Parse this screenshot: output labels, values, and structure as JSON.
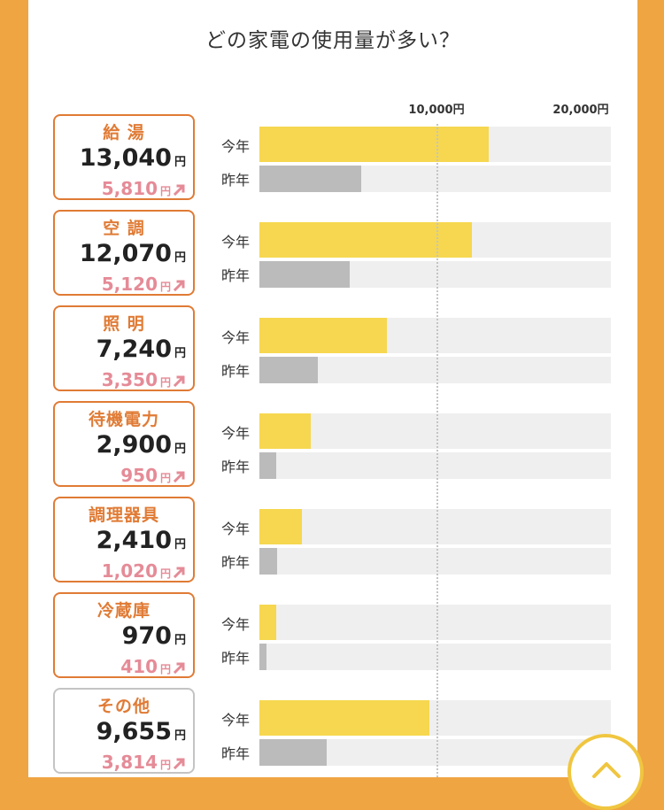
{
  "title": "どの家電の使用量が多い？",
  "scale": {
    "mid_label": "10,000円",
    "max_label": "20,000円",
    "mid_value": 10000,
    "max_value": 20000
  },
  "labels": {
    "current": "今年",
    "previous": "昨年",
    "unit": "円"
  },
  "colors": {
    "accent": "#e07b35",
    "current_bar": "#f6d74f",
    "previous_bar": "#bbbbbb",
    "increase": "#e58b97",
    "frame": "#efa542"
  },
  "chart_data": {
    "type": "bar",
    "title": "どの家電の使用量が多い？",
    "categories": [
      "給 湯",
      "空 調",
      "照 明",
      "待機電力",
      "調理器具",
      "冷蔵庫",
      "その他"
    ],
    "series": [
      {
        "name": "今年",
        "values": [
          13040,
          12070,
          7240,
          2900,
          2410,
          970,
          9655
        ]
      },
      {
        "name": "昨年",
        "values": [
          5810,
          5120,
          3350,
          950,
          1020,
          410,
          3814
        ]
      }
    ],
    "xlim": [
      0,
      20000
    ],
    "ticks": [
      "10,000円",
      "20,000円"
    ]
  },
  "items": [
    {
      "name": "給 湯",
      "current": "13,040",
      "previous": "5,810",
      "style": "orange"
    },
    {
      "name": "空 調",
      "current": "12,070",
      "previous": "5,120",
      "style": "orange"
    },
    {
      "name": "照 明",
      "current": "7,240",
      "previous": "3,350",
      "style": "orange"
    },
    {
      "name": "待機電力",
      "current": "2,900",
      "previous": "950",
      "style": "orange"
    },
    {
      "name": "調理器具",
      "current": "2,410",
      "previous": "1,020",
      "style": "orange"
    },
    {
      "name": "冷蔵庫",
      "current": "970",
      "previous": "410",
      "style": "orange"
    },
    {
      "name": "その他",
      "current": "9,655",
      "previous": "3,814",
      "style": "gray"
    }
  ],
  "scroll_top": {
    "icon": "chevron-up-icon"
  }
}
